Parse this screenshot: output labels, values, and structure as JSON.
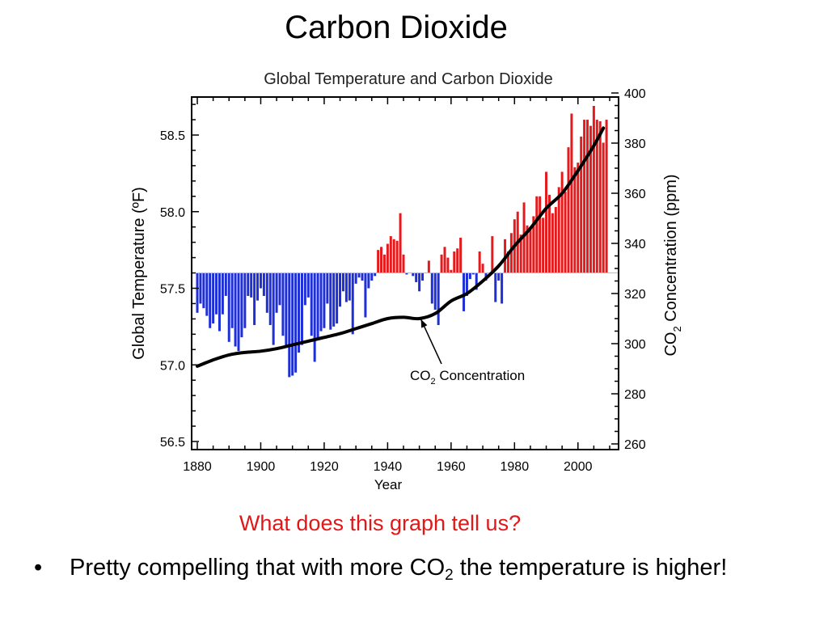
{
  "slide": {
    "title": "Carbon Dioxide",
    "question": "What does this graph tell us?",
    "bullet_marker": "•",
    "bullet_text_before": "Pretty compelling that with more CO",
    "bullet_sub": "2",
    "bullet_text_after": " the temperature is higher!"
  },
  "colors": {
    "warm_bar": "#e41a1c",
    "cool_bar": "#1f2fd6",
    "co2_line": "#000000",
    "question_text": "#e01818"
  },
  "chart_data": {
    "type": "bar",
    "title": "Global Temperature and Carbon Dioxide",
    "xlabel": "Year",
    "ylabel_left": "Global Temperature (ºF)",
    "ylabel_right_main": "CO",
    "ylabel_right_sub": "2",
    "ylabel_right_rest": " Concentration (ppm)",
    "xlim": [
      1880,
      2010
    ],
    "ylim_left": [
      56.5,
      58.7
    ],
    "ylim_right": [
      260,
      400
    ],
    "baseline": 57.6,
    "x_ticks": [
      1880,
      1900,
      1920,
      1940,
      1960,
      1980,
      2000
    ],
    "y_left_ticks": [
      "56.5",
      "57.0",
      "57.5",
      "58.0",
      "58.5"
    ],
    "y_right_ticks": [
      260,
      280,
      300,
      320,
      340,
      360,
      380,
      400
    ],
    "grid": false,
    "annotation": {
      "text_main": "CO",
      "text_sub": "2",
      "text_rest": " Concentration",
      "points_to": {
        "year": 1950,
        "ppm": 311
      }
    },
    "temperature_series": {
      "name": "",
      "years": [
        1880,
        1881,
        1882,
        1883,
        1884,
        1885,
        1886,
        1887,
        1888,
        1889,
        1890,
        1891,
        1892,
        1893,
        1894,
        1895,
        1896,
        1897,
        1898,
        1899,
        1900,
        1901,
        1902,
        1903,
        1904,
        1905,
        1906,
        1907,
        1908,
        1909,
        1910,
        1911,
        1912,
        1913,
        1914,
        1915,
        1916,
        1917,
        1918,
        1919,
        1920,
        1921,
        1922,
        1923,
        1924,
        1925,
        1926,
        1927,
        1928,
        1929,
        1930,
        1931,
        1932,
        1933,
        1934,
        1935,
        1936,
        1937,
        1938,
        1939,
        1940,
        1941,
        1942,
        1943,
        1944,
        1945,
        1946,
        1947,
        1948,
        1949,
        1950,
        1951,
        1952,
        1953,
        1954,
        1955,
        1956,
        1957,
        1958,
        1959,
        1960,
        1961,
        1962,
        1963,
        1964,
        1965,
        1966,
        1967,
        1968,
        1969,
        1970,
        1971,
        1972,
        1973,
        1974,
        1975,
        1976,
        1977,
        1978,
        1979,
        1980,
        1981,
        1982,
        1983,
        1984,
        1985,
        1986,
        1987,
        1988,
        1989,
        1990,
        1991,
        1992,
        1993,
        1994,
        1995,
        1996,
        1997,
        1998,
        1999,
        2000,
        2001,
        2002,
        2003,
        2004,
        2005,
        2006,
        2007,
        2008,
        2009
      ],
      "values": [
        57.34,
        57.4,
        57.37,
        57.32,
        57.24,
        57.27,
        57.33,
        57.22,
        57.33,
        57.45,
        57.15,
        57.24,
        57.12,
        57.09,
        57.18,
        57.24,
        57.45,
        57.44,
        57.26,
        57.42,
        57.5,
        57.45,
        57.34,
        57.26,
        57.13,
        57.34,
        57.39,
        57.19,
        57.12,
        56.92,
        56.93,
        56.95,
        57.08,
        57.13,
        57.39,
        57.44,
        57.19,
        57.02,
        57.16,
        57.22,
        57.24,
        57.4,
        57.23,
        57.25,
        57.27,
        57.38,
        57.48,
        57.41,
        57.42,
        57.2,
        57.53,
        57.57,
        57.55,
        57.31,
        57.5,
        57.55,
        57.58,
        57.75,
        57.77,
        57.72,
        57.79,
        57.84,
        57.82,
        57.81,
        57.99,
        57.72,
        57.59,
        57.6,
        57.58,
        57.54,
        57.48,
        57.55,
        57.6,
        57.68,
        57.4,
        57.36,
        57.26,
        57.72,
        57.77,
        57.7,
        57.62,
        57.74,
        57.76,
        57.83,
        57.35,
        57.45,
        57.56,
        57.59,
        57.49,
        57.74,
        57.66,
        57.55,
        57.6,
        57.84,
        57.41,
        57.55,
        57.4,
        57.82,
        57.74,
        57.86,
        57.95,
        58.0,
        57.85,
        58.06,
        57.91,
        57.89,
        57.97,
        58.1,
        58.1,
        57.96,
        58.26,
        58.11,
        57.99,
        58.03,
        58.16,
        58.26,
        58.13,
        58.42,
        58.64,
        58.29,
        58.32,
        58.49,
        58.6,
        58.6,
        58.56,
        58.69,
        58.6,
        58.59,
        58.45,
        58.6
      ]
    },
    "co2_series": {
      "name": "",
      "years": [
        1880,
        1885,
        1890,
        1895,
        1900,
        1905,
        1910,
        1915,
        1920,
        1925,
        1930,
        1935,
        1940,
        1945,
        1950,
        1955,
        1960,
        1965,
        1970,
        1975,
        1980,
        1985,
        1990,
        1995,
        2000,
        2005,
        2008
      ],
      "values": [
        291,
        293.5,
        295.5,
        296.5,
        297,
        298,
        299.5,
        301,
        302.5,
        304,
        306,
        308,
        310,
        310.5,
        310,
        312,
        317,
        320,
        325,
        331,
        339,
        346,
        354,
        360,
        369,
        379,
        386
      ]
    }
  }
}
